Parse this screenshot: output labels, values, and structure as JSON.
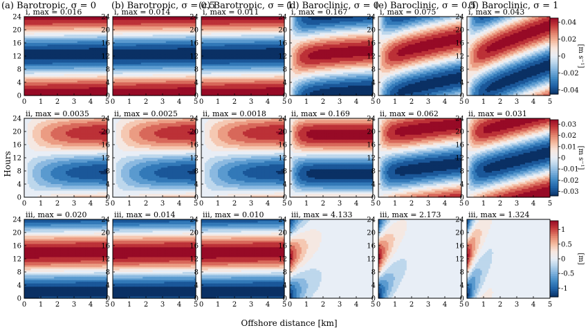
{
  "columns": [
    {
      "label": "(a) Barotropic, σ = 0",
      "regime": "barotropic",
      "sigma": 0
    },
    {
      "label": "(b) Barotropic, σ = 0.5",
      "regime": "barotropic",
      "sigma": 0.5
    },
    {
      "label": "(c) Barotropic, σ = 1",
      "regime": "barotropic",
      "sigma": 1
    },
    {
      "label": "(d) Baroclinic, σ = 0",
      "regime": "baroclinic",
      "sigma": 0
    },
    {
      "label": "(e) Baroclinic, σ = 0.5",
      "regime": "baroclinic",
      "sigma": 0.5
    },
    {
      "label": "(f) Baroclinic, σ = 1",
      "regime": "baroclinic",
      "sigma": 1
    }
  ],
  "rows": [
    {
      "id": "i",
      "titles": [
        "i, max = 0.016",
        "i, max = 0.014",
        "i, max = 0.011",
        "i, max = 0.167",
        "i, max = 0.075",
        "i, max = 0.043"
      ],
      "colorbar": {
        "ticks": [
          "0.04",
          "0.02",
          "0",
          "-0.02",
          "-0.04"
        ],
        "tick_values": [
          0.04,
          0.02,
          0,
          -0.02,
          -0.04
        ],
        "range": [
          -0.045,
          0.045
        ],
        "label": "[m s⁻¹]"
      }
    },
    {
      "id": "ii",
      "titles": [
        "ii, max = 0.0035",
        "ii, max = 0.0025",
        "ii, max = 0.0018",
        "ii, max = 0.169",
        "ii, max = 0.062",
        "ii, max = 0.031"
      ],
      "colorbar": {
        "ticks": [
          "0.03",
          "0.02",
          "0.01",
          "0",
          "-0.01",
          "-0.02",
          "-0.03"
        ],
        "tick_values": [
          0.03,
          0.02,
          0.01,
          0,
          -0.01,
          -0.02,
          -0.03
        ],
        "range": [
          -0.034,
          0.034
        ],
        "label": "[m s⁻¹]"
      }
    },
    {
      "id": "iii",
      "titles": [
        "iii, max = 0.020",
        "iii, max = 0.014",
        "iii, max = 0.010",
        "iii, max = 4.133",
        "iii, max = 2.173",
        "iii, max = 1.324"
      ],
      "colorbar": {
        "ticks": [
          "1",
          "0.5",
          "0",
          "-0.5",
          "-1"
        ],
        "tick_values": [
          1,
          0.5,
          0,
          -0.5,
          -1
        ],
        "range": [
          -1.3,
          1.3
        ],
        "label": "[m]"
      }
    }
  ],
  "chart_data": {
    "type": "heatmap",
    "xlabel": "Offshore distance [km]",
    "ylabel": "Hours",
    "xticks": [
      0,
      1,
      2,
      3,
      4,
      5
    ],
    "yticks": [
      0,
      4,
      8,
      12,
      16,
      20,
      24
    ],
    "xlim": [
      0,
      5
    ],
    "ylim": [
      0,
      24
    ],
    "levels": 13
  },
  "colors": {
    "scale": [
      "#0a3064",
      "#1d5fa3",
      "#3d86c2",
      "#77addb",
      "#b4d2ea",
      "#e8eef6",
      "#f8e7de",
      "#f4b89c",
      "#e2806a",
      "#c4393b",
      "#970a26"
    ]
  }
}
